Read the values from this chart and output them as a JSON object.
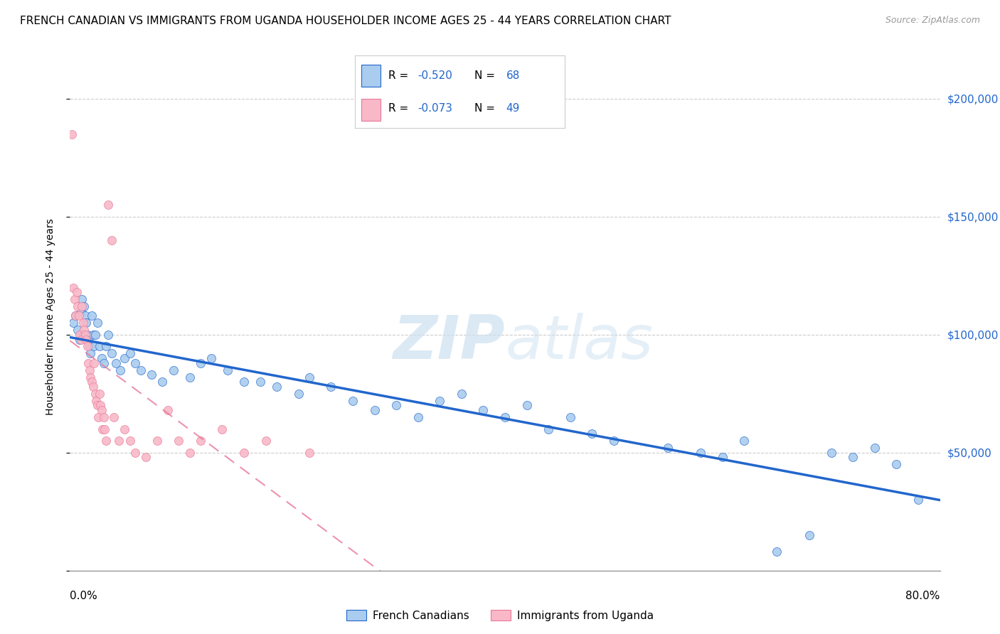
{
  "title": "FRENCH CANADIAN VS IMMIGRANTS FROM UGANDA HOUSEHOLDER INCOME AGES 25 - 44 YEARS CORRELATION CHART",
  "source": "Source: ZipAtlas.com",
  "ylabel": "Householder Income Ages 25 - 44 years",
  "xmin": 0.0,
  "xmax": 80.0,
  "ymin": 0,
  "ymax": 215000,
  "yticks": [
    0,
    50000,
    100000,
    150000,
    200000
  ],
  "ytick_labels": [
    "",
    "$50,000",
    "$100,000",
    "$150,000",
    "$200,000"
  ],
  "legend_blue_r": "-0.520",
  "legend_blue_n": "68",
  "legend_pink_r": "-0.073",
  "legend_pink_n": "49",
  "legend_blue_label": "French Canadians",
  "legend_pink_label": "Immigrants from Uganda",
  "blue_scatter_color": "#aaccee",
  "blue_line_color": "#2266cc",
  "pink_scatter_color": "#f8b8c8",
  "pink_line_color": "#e87898",
  "watermark_color": "#cce0f0",
  "title_fontsize": 11,
  "blue_x": [
    0.3,
    0.5,
    0.7,
    0.9,
    1.0,
    1.1,
    1.2,
    1.3,
    1.4,
    1.5,
    1.6,
    1.7,
    1.8,
    1.9,
    2.0,
    2.1,
    2.2,
    2.3,
    2.5,
    2.7,
    2.9,
    3.1,
    3.3,
    3.5,
    3.8,
    4.2,
    4.6,
    5.0,
    5.5,
    6.0,
    6.5,
    7.5,
    8.5,
    9.5,
    11.0,
    12.0,
    13.0,
    14.5,
    16.0,
    17.5,
    19.0,
    21.0,
    22.0,
    24.0,
    26.0,
    28.0,
    30.0,
    32.0,
    34.0,
    36.0,
    38.0,
    40.0,
    42.0,
    44.0,
    46.0,
    48.0,
    50.0,
    55.0,
    58.0,
    60.0,
    62.0,
    65.0,
    68.0,
    70.0,
    72.0,
    74.0,
    76.0,
    78.0
  ],
  "blue_y": [
    105000,
    108000,
    102000,
    98000,
    110000,
    115000,
    100000,
    112000,
    108000,
    105000,
    100000,
    98000,
    95000,
    92000,
    108000,
    100000,
    95000,
    100000,
    105000,
    95000,
    90000,
    88000,
    95000,
    100000,
    92000,
    88000,
    85000,
    90000,
    92000,
    88000,
    85000,
    83000,
    80000,
    85000,
    82000,
    88000,
    90000,
    85000,
    80000,
    80000,
    78000,
    75000,
    82000,
    78000,
    72000,
    68000,
    70000,
    65000,
    72000,
    75000,
    68000,
    65000,
    70000,
    60000,
    65000,
    58000,
    55000,
    52000,
    50000,
    48000,
    55000,
    8000,
    15000,
    50000,
    48000,
    52000,
    45000,
    30000
  ],
  "pink_x": [
    0.2,
    0.3,
    0.4,
    0.5,
    0.6,
    0.7,
    0.8,
    0.9,
    1.0,
    1.1,
    1.2,
    1.3,
    1.4,
    1.5,
    1.6,
    1.7,
    1.8,
    1.9,
    2.0,
    2.1,
    2.2,
    2.3,
    2.4,
    2.5,
    2.6,
    2.7,
    2.8,
    2.9,
    3.0,
    3.1,
    3.2,
    3.3,
    3.5,
    3.8,
    4.0,
    4.5,
    5.0,
    5.5,
    6.0,
    7.0,
    8.0,
    9.0,
    10.0,
    11.0,
    12.0,
    14.0,
    16.0,
    18.0,
    22.0
  ],
  "pink_y": [
    185000,
    120000,
    115000,
    108000,
    118000,
    112000,
    108000,
    100000,
    98000,
    112000,
    105000,
    102000,
    100000,
    98000,
    95000,
    88000,
    85000,
    82000,
    80000,
    78000,
    88000,
    75000,
    72000,
    70000,
    65000,
    75000,
    70000,
    68000,
    60000,
    65000,
    60000,
    55000,
    155000,
    140000,
    65000,
    55000,
    60000,
    55000,
    50000,
    48000,
    55000,
    68000,
    55000,
    50000,
    55000,
    60000,
    50000,
    55000,
    50000
  ]
}
